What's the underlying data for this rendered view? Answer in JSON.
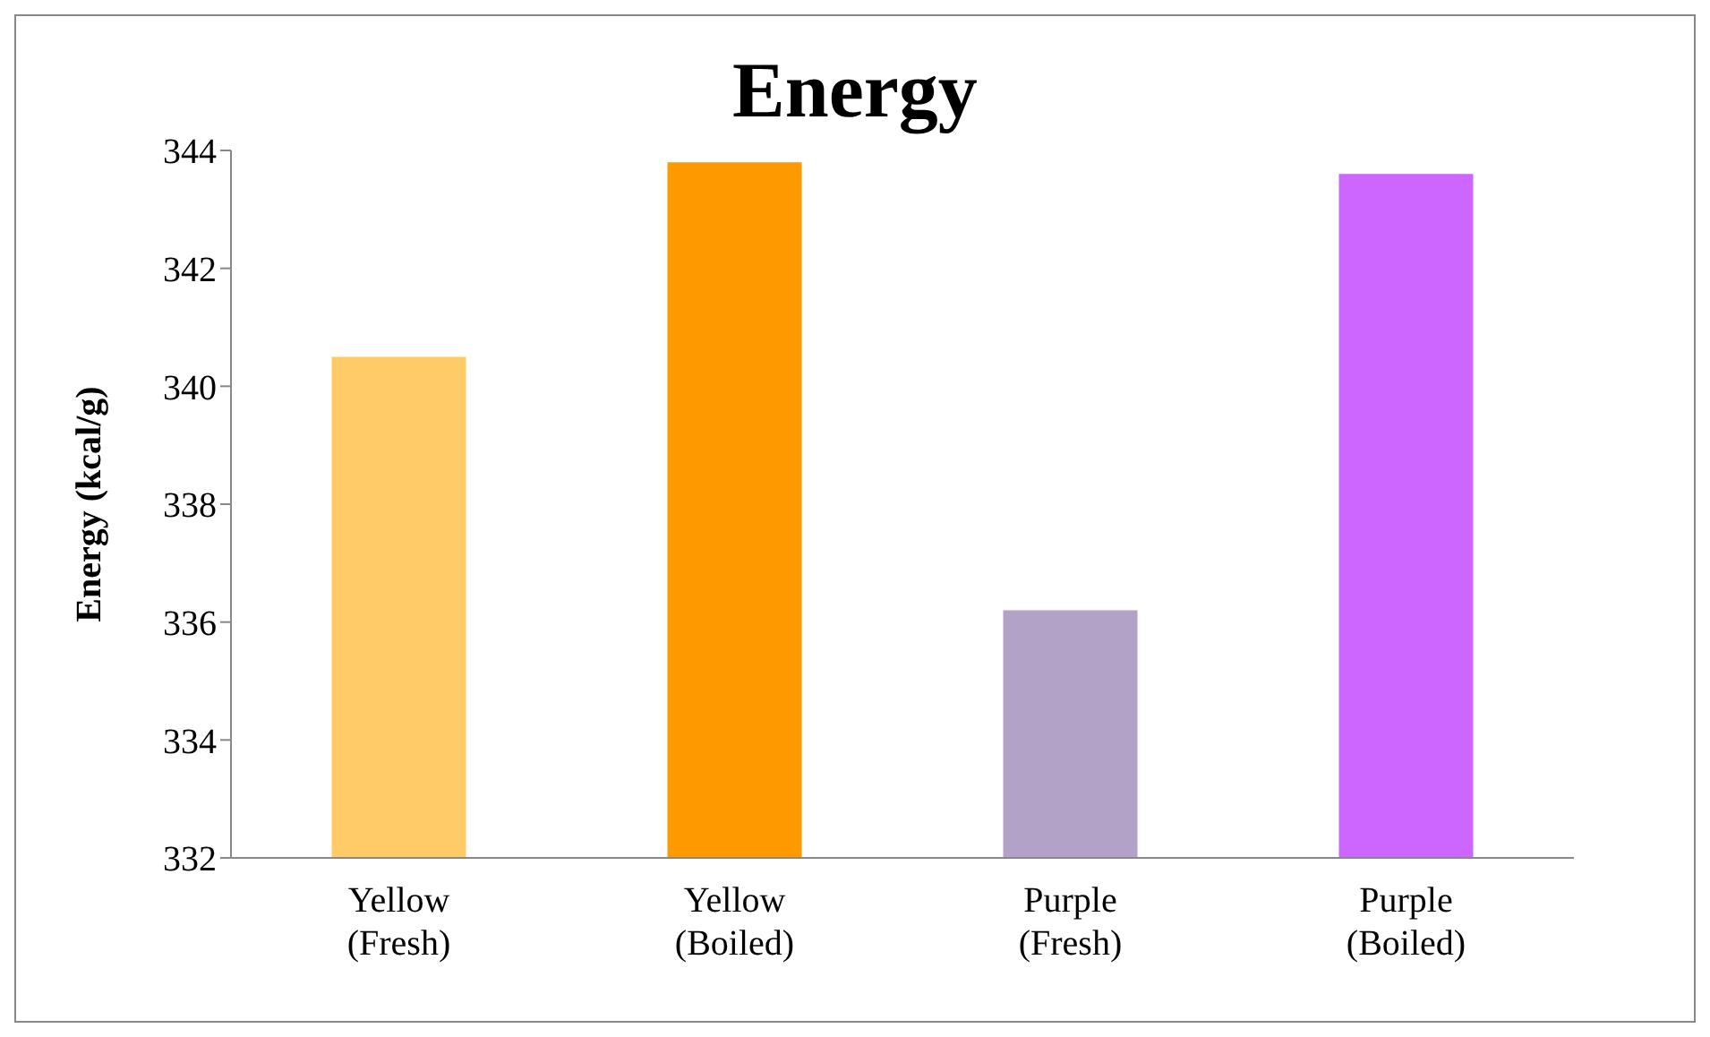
{
  "chart_data": {
    "type": "bar",
    "title": "Energy",
    "ylabel": "Energy (kcal/g)",
    "categories": [
      "Yellow (Fresh)",
      "Yellow (Boiled)",
      "Purple (Fresh)",
      "Purple (Boiled)"
    ],
    "values": [
      340.5,
      343.8,
      336.2,
      343.6
    ],
    "colors": [
      "#fecb66",
      "#ff9900",
      "#b3a2c7",
      "#cc66ff"
    ],
    "ylim": [
      332,
      344
    ],
    "yticks": [
      332,
      334,
      336,
      338,
      340,
      342,
      344
    ],
    "grid": false,
    "legend": false
  }
}
